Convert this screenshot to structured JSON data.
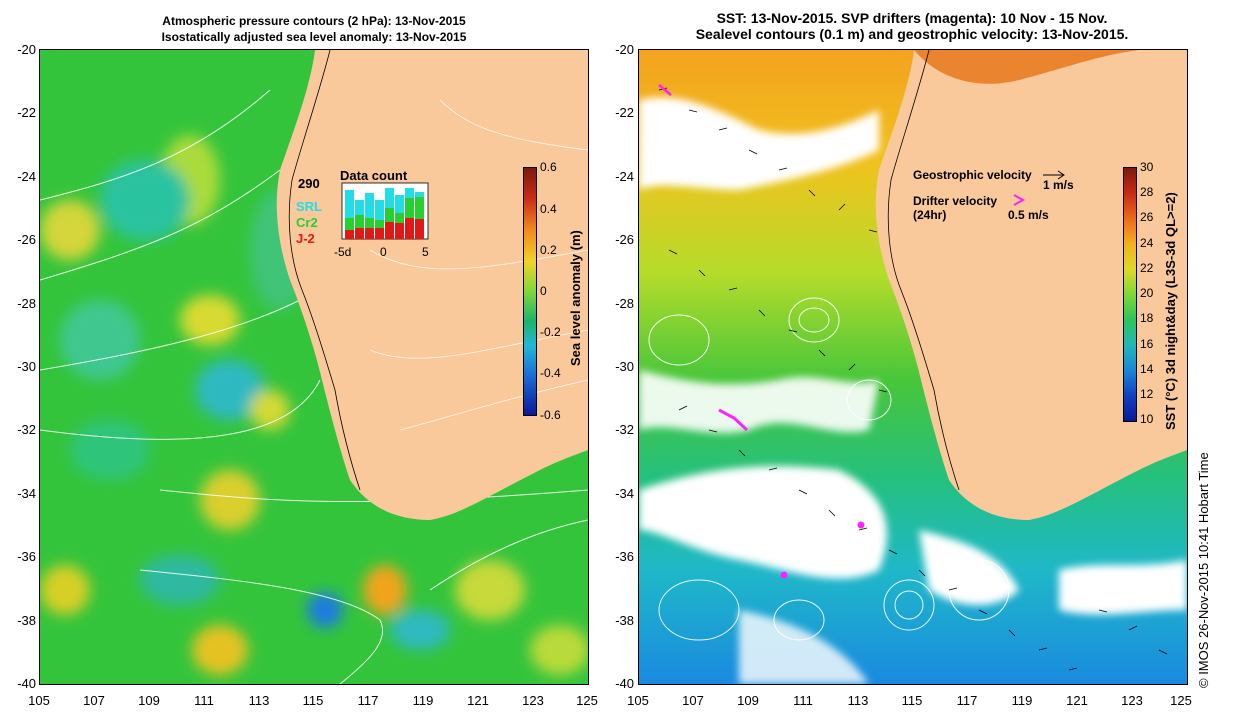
{
  "left_panel": {
    "title_line1": "Atmospheric pressure contours (2 hPa): 13-Nov-2015",
    "title_line2": "Isostatically adjusted sea level anomaly: 13-Nov-2015",
    "y_ticks": [
      "-20",
      "-22",
      "-24",
      "-26",
      "-28",
      "-30",
      "-32",
      "-34",
      "-36",
      "-38",
      "-40"
    ],
    "x_ticks": [
      "105",
      "107",
      "109",
      "111",
      "113",
      "115",
      "117",
      "119",
      "121",
      "123",
      "125"
    ],
    "colorbar_label": "Sea level anomaly (m)",
    "colorbar_ticks": [
      "0.6",
      "0.4",
      "0.2",
      "0",
      "-0.2",
      "-0.4",
      "-0.6"
    ],
    "inset": {
      "title": "Data count",
      "count": "290",
      "sat1": "SRL",
      "sat2": "Cr2",
      "sat3": "J-2",
      "axis_labels": [
        "-5d",
        "0",
        "5"
      ],
      "colors": {
        "sat1": "#22dde6",
        "sat2": "#27cf2f",
        "sat3": "#e01818"
      }
    }
  },
  "right_panel": {
    "title_line1": "SST: 13-Nov-2015. SVP drifters (magenta): 10 Nov - 15 Nov.",
    "title_line2": "Sealevel contours (0.1 m) and geostrophic velocity: 13-Nov-2015.",
    "y_ticks": [
      "-20",
      "-22",
      "-24",
      "-26",
      "-28",
      "-30",
      "-32",
      "-34",
      "-36",
      "-38",
      "-40"
    ],
    "x_ticks": [
      "105",
      "107",
      "109",
      "111",
      "113",
      "115",
      "117",
      "119",
      "121",
      "123",
      "125"
    ],
    "colorbar_label": "SST (°C) 3d night&day (L3S-3d QL>=2)",
    "colorbar_ticks": [
      "30",
      "28",
      "26",
      "24",
      "22",
      "20",
      "18",
      "16",
      "14",
      "12",
      "10"
    ],
    "legend": {
      "geo_label": "Geostrophic velocity",
      "geo_scale": "1 m/s",
      "drifter_label": "Drifter velocity",
      "drifter_sub": "(24hr)",
      "drifter_scale": "0.5 m/s"
    }
  },
  "credit": "© IMOS 26-Nov-2015 10:41 Hobart Time",
  "colors": {
    "land": "#f9c89b",
    "sea_green": "#34c43c",
    "drifter": "#ff22ff"
  }
}
